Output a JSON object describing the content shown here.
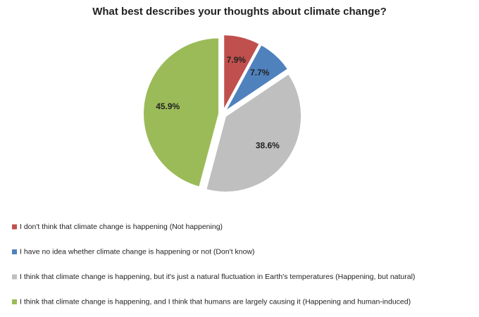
{
  "chart_data": {
    "type": "pie",
    "title": "What best describes your thoughts about climate change?",
    "categories": [
      "I don't think that climate change is happening (Not happening)",
      "I have no idea whether climate change is happening or not (Don't know)",
      "I think that climate change is happening, but it's just a natural fluctuation in Earth's temperatures (Happening, but natural)",
      "I think that climate change is happening, and I think that humans are largely causing it (Happening and human-induced)"
    ],
    "values": [
      7.9,
      7.7,
      38.6,
      45.9
    ],
    "value_labels": [
      "7.9%",
      "7.7%",
      "38.6%",
      "45.9%"
    ],
    "colors": [
      "#c0504d",
      "#4f81bd",
      "#bfbfbf",
      "#9bbb59"
    ],
    "legend": "bottom"
  }
}
